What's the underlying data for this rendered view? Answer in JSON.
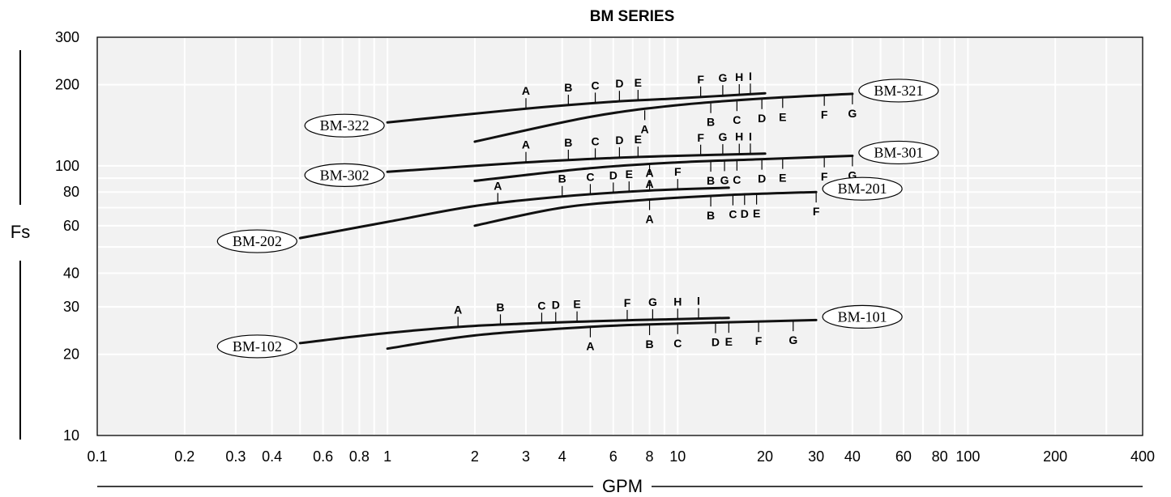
{
  "chart_data": {
    "type": "line",
    "title": "BM SERIES",
    "xlabel": "GPM",
    "ylabel": "Fs",
    "xscale": "log",
    "yscale": "log",
    "xlim": [
      0.1,
      400
    ],
    "ylim": [
      10,
      300
    ],
    "grid": true,
    "background": "#f2f2f2",
    "line_color": "#111111",
    "xticks": [
      {
        "v": 0.1,
        "label": "0.1"
      },
      {
        "v": 0.2,
        "label": "0.2"
      },
      {
        "v": 0.3,
        "label": "0.3"
      },
      {
        "v": 0.4,
        "label": "0.4"
      },
      {
        "v": 0.6,
        "label": "0.6"
      },
      {
        "v": 0.8,
        "label": "0.8"
      },
      {
        "v": 1,
        "label": "1"
      },
      {
        "v": 2,
        "label": "2"
      },
      {
        "v": 3,
        "label": "3"
      },
      {
        "v": 4,
        "label": "4"
      },
      {
        "v": 6,
        "label": "6"
      },
      {
        "v": 8,
        "label": "8"
      },
      {
        "v": 10,
        "label": "10"
      },
      {
        "v": 20,
        "label": "20"
      },
      {
        "v": 30,
        "label": "30"
      },
      {
        "v": 40,
        "label": "40"
      },
      {
        "v": 60,
        "label": "60"
      },
      {
        "v": 80,
        "label": "80"
      },
      {
        "v": 100,
        "label": "100"
      },
      {
        "v": 200,
        "label": "200"
      },
      {
        "v": 400,
        "label": "400"
      }
    ],
    "yticks": [
      {
        "v": 10,
        "label": "10"
      },
      {
        "v": 20,
        "label": "20"
      },
      {
        "v": 30,
        "label": "30"
      },
      {
        "v": 40,
        "label": "40"
      },
      {
        "v": 60,
        "label": "60"
      },
      {
        "v": 80,
        "label": "80"
      },
      {
        "v": 100,
        "label": "100"
      },
      {
        "v": 200,
        "label": "200"
      },
      {
        "v": 300,
        "label": "300"
      }
    ],
    "xgrid": [
      0.2,
      0.3,
      0.4,
      0.5,
      0.6,
      0.7,
      0.8,
      0.9,
      1,
      2,
      3,
      4,
      5,
      6,
      7,
      8,
      9,
      10,
      20,
      30,
      40,
      50,
      60,
      70,
      80,
      90,
      100,
      200,
      300
    ],
    "ygrid": [
      20,
      30,
      40,
      50,
      60,
      70,
      80,
      90,
      100,
      200
    ],
    "series": [
      {
        "name": "BM-322",
        "label_side": "left",
        "points": [
          [
            1,
            145
          ],
          [
            3,
            163
          ],
          [
            6,
            173
          ],
          [
            10,
            178
          ],
          [
            20,
            186
          ]
        ],
        "markers": [
          {
            "label": "A",
            "x": 3,
            "pos": "above"
          },
          {
            "label": "B",
            "x": 4.2,
            "pos": "above"
          },
          {
            "label": "C",
            "x": 5.2,
            "pos": "above"
          },
          {
            "label": "D",
            "x": 6.3,
            "pos": "above"
          },
          {
            "label": "E",
            "x": 7.3,
            "pos": "above"
          },
          {
            "label": "F",
            "x": 12,
            "pos": "above"
          },
          {
            "label": "G",
            "x": 14.3,
            "pos": "above"
          },
          {
            "label": "H",
            "x": 16.3,
            "pos": "above"
          },
          {
            "label": "I",
            "x": 17.8,
            "pos": "above"
          }
        ]
      },
      {
        "name": "BM-321",
        "label_side": "right",
        "points": [
          [
            2,
            123
          ],
          [
            5,
            152
          ],
          [
            10,
            168
          ],
          [
            20,
            178
          ],
          [
            40,
            185
          ]
        ],
        "markers": [
          {
            "label": "A",
            "x": 7.7,
            "pos": "below"
          },
          {
            "label": "B",
            "x": 13,
            "pos": "below"
          },
          {
            "label": "C",
            "x": 16,
            "pos": "below"
          },
          {
            "label": "D",
            "x": 19.5,
            "pos": "below"
          },
          {
            "label": "E",
            "x": 23,
            "pos": "below"
          },
          {
            "label": "F",
            "x": 32,
            "pos": "below"
          },
          {
            "label": "G",
            "x": 40,
            "pos": "below"
          }
        ]
      },
      {
        "name": "BM-302",
        "label_side": "left",
        "points": [
          [
            1,
            95
          ],
          [
            3,
            103
          ],
          [
            6,
            107
          ],
          [
            10,
            109
          ],
          [
            20,
            111
          ]
        ],
        "markers": [
          {
            "label": "A",
            "x": 3,
            "pos": "above"
          },
          {
            "label": "B",
            "x": 4.2,
            "pos": "above"
          },
          {
            "label": "C",
            "x": 5.2,
            "pos": "above"
          },
          {
            "label": "D",
            "x": 6.3,
            "pos": "above"
          },
          {
            "label": "E",
            "x": 7.3,
            "pos": "above"
          },
          {
            "label": "F",
            "x": 12,
            "pos": "above"
          },
          {
            "label": "G",
            "x": 14.3,
            "pos": "above"
          },
          {
            "label": "H",
            "x": 16.3,
            "pos": "above"
          },
          {
            "label": "I",
            "x": 17.8,
            "pos": "above"
          }
        ]
      },
      {
        "name": "BM-301",
        "label_side": "right",
        "points": [
          [
            2,
            88
          ],
          [
            5,
            98
          ],
          [
            10,
            103
          ],
          [
            20,
            106
          ],
          [
            40,
            109
          ]
        ],
        "markers": [
          {
            "label": "A",
            "x": 8,
            "pos": "below"
          },
          {
            "label": "B",
            "x": 13,
            "pos": "below"
          },
          {
            "label": "G",
            "x": 14.5,
            "pos": "below"
          },
          {
            "label": "C",
            "x": 16,
            "pos": "below"
          },
          {
            "label": "D",
            "x": 19.5,
            "pos": "below"
          },
          {
            "label": "E",
            "x": 23,
            "pos": "below"
          },
          {
            "label": "F",
            "x": 32,
            "pos": "below"
          },
          {
            "label": "G",
            "x": 40,
            "pos": "below"
          }
        ]
      },
      {
        "name": "BM-202",
        "label_side": "left",
        "points": [
          [
            0.5,
            54
          ],
          [
            1,
            62
          ],
          [
            2,
            71
          ],
          [
            4,
            77
          ],
          [
            8,
            81
          ],
          [
            15,
            83
          ]
        ],
        "markers": [
          {
            "label": "A",
            "x": 2.4,
            "pos": "above"
          },
          {
            "label": "B",
            "x": 4,
            "pos": "above"
          },
          {
            "label": "C",
            "x": 5,
            "pos": "above"
          },
          {
            "label": "D",
            "x": 6,
            "pos": "above"
          },
          {
            "label": "E",
            "x": 6.8,
            "pos": "above"
          },
          {
            "label": "A",
            "x": 8,
            "pos": "above"
          },
          {
            "label": "F",
            "x": 10,
            "pos": "above"
          }
        ]
      },
      {
        "name": "BM-201",
        "label_side": "right",
        "points": [
          [
            2,
            60
          ],
          [
            4,
            70
          ],
          [
            8,
            75
          ],
          [
            15,
            78
          ],
          [
            30,
            80
          ]
        ],
        "markers": [
          {
            "label": "A",
            "x": 8,
            "pos": "below"
          },
          {
            "label": "B",
            "x": 13,
            "pos": "below"
          },
          {
            "label": "C",
            "x": 15.5,
            "pos": "below"
          },
          {
            "label": "D",
            "x": 17,
            "pos": "below"
          },
          {
            "label": "E",
            "x": 18.7,
            "pos": "below"
          },
          {
            "label": "F",
            "x": 30,
            "pos": "below"
          }
        ]
      },
      {
        "name": "BM-102",
        "label_side": "left",
        "points": [
          [
            0.5,
            22
          ],
          [
            1,
            24
          ],
          [
            2,
            25.5
          ],
          [
            5,
            26.5
          ],
          [
            10,
            27
          ],
          [
            15,
            27.3
          ]
        ],
        "markers": [
          {
            "label": "A",
            "x": 1.75,
            "pos": "above"
          },
          {
            "label": "B",
            "x": 2.45,
            "pos": "above"
          },
          {
            "label": "C",
            "x": 3.4,
            "pos": "above"
          },
          {
            "label": "D",
            "x": 3.8,
            "pos": "above"
          },
          {
            "label": "E",
            "x": 4.5,
            "pos": "above"
          },
          {
            "label": "F",
            "x": 6.7,
            "pos": "above"
          },
          {
            "label": "G",
            "x": 8.2,
            "pos": "above"
          },
          {
            "label": "H",
            "x": 10,
            "pos": "above"
          },
          {
            "label": "I",
            "x": 11.8,
            "pos": "above"
          }
        ]
      },
      {
        "name": "BM-101",
        "label_side": "right",
        "points": [
          [
            1,
            21
          ],
          [
            2,
            23.5
          ],
          [
            5,
            25.3
          ],
          [
            10,
            26
          ],
          [
            20,
            26.5
          ],
          [
            30,
            26.8
          ]
        ],
        "markers": [
          {
            "label": "A",
            "x": 5,
            "pos": "below"
          },
          {
            "label": "B",
            "x": 8,
            "pos": "below"
          },
          {
            "label": "C",
            "x": 10,
            "pos": "below"
          },
          {
            "label": "D",
            "x": 13.5,
            "pos": "below"
          },
          {
            "label": "E",
            "x": 15,
            "pos": "below"
          },
          {
            "label": "F",
            "x": 19,
            "pos": "below"
          },
          {
            "label": "G",
            "x": 25,
            "pos": "below"
          }
        ]
      }
    ]
  }
}
